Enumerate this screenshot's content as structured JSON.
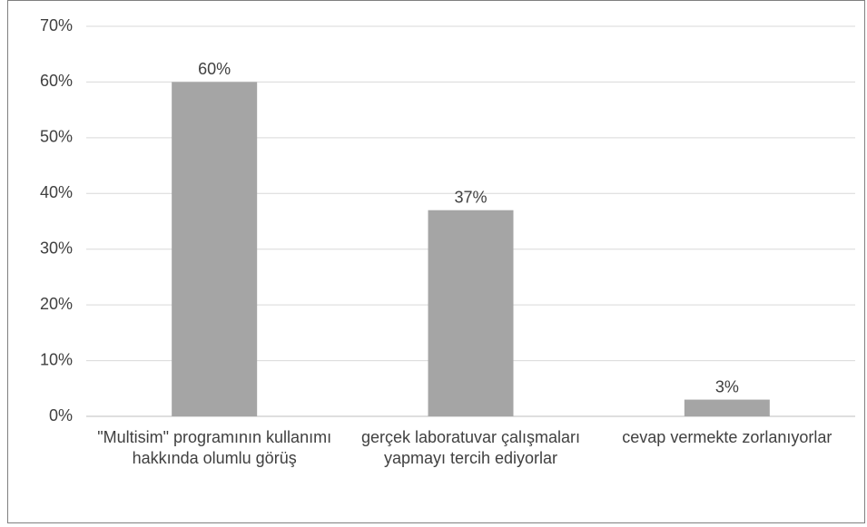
{
  "chart_data": {
    "type": "bar",
    "categories": [
      "\"Multisim\" programının kullanımı hakkında olumlu görüş",
      "gerçek laboratuvar çalışmaları yapmayı tercih ediyorlar",
      "cevap vermekte zorlanıyorlar"
    ],
    "values": [
      60,
      37,
      3
    ],
    "value_labels": [
      "60%",
      "37%",
      "3%"
    ],
    "color": "#a5a5a5",
    "ylim": [
      0,
      70
    ],
    "yticks": [
      {
        "value": 0,
        "label": "0%"
      },
      {
        "value": 10,
        "label": "10%"
      },
      {
        "value": 20,
        "label": "20%"
      },
      {
        "value": 30,
        "label": "30%"
      },
      {
        "value": 40,
        "label": "40%"
      },
      {
        "value": 50,
        "label": "50%"
      },
      {
        "value": 60,
        "label": "60%"
      },
      {
        "value": 70,
        "label": "70%"
      }
    ],
    "grid": true
  }
}
